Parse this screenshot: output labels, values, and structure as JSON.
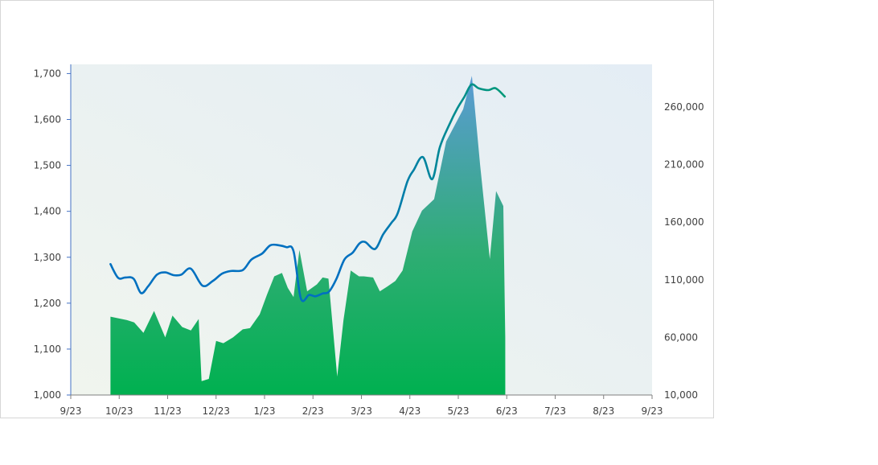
{
  "chart_data": {
    "type": "area",
    "title": "",
    "x_tick_labels": [
      "9/23",
      "10/23",
      "11/23",
      "12/23",
      "1/23",
      "2/23",
      "3/23",
      "4/23",
      "5/23",
      "6/23",
      "7/23",
      "8/23",
      "9/23"
    ],
    "left_axis": {
      "ticks": [
        "1,000",
        "1,100",
        "1,200",
        "1,300",
        "1,400",
        "1,500",
        "1,600",
        "1,700"
      ],
      "ylim": [
        1000,
        1720
      ]
    },
    "right_axis": {
      "ticks": [
        "10,000",
        "60,000",
        "110,000",
        "160,000",
        "210,000",
        "260,000"
      ],
      "ylim": [
        10000,
        297000
      ]
    },
    "grid": false,
    "series": [
      {
        "kind": "area",
        "axis": "right",
        "colors": {
          "bottom": "#00b050",
          "top": "#5b9bd5"
        },
        "x": [
          0.82,
          1.16,
          1.31,
          1.5,
          1.72,
          1.95,
          2.1,
          2.3,
          2.48,
          2.64,
          2.7,
          2.85,
          3.0,
          3.15,
          3.35,
          3.55,
          3.7,
          3.9,
          4.05,
          4.2,
          4.36,
          4.48,
          4.6,
          4.72,
          4.88,
          5.08,
          5.2,
          5.32,
          5.5,
          5.63,
          5.78,
          5.95,
          6.05,
          6.24,
          6.38,
          6.53,
          6.7,
          6.85,
          7.05,
          7.25,
          7.5,
          7.75,
          8.1,
          8.28,
          8.45,
          8.65,
          8.78,
          8.93,
          8.97
        ],
        "y": [
          78000,
          75000,
          73000,
          64000,
          83000,
          60000,
          79000,
          69000,
          66000,
          76000,
          22000,
          24000,
          57000,
          55000,
          60000,
          67000,
          68000,
          80000,
          97000,
          113000,
          116000,
          103000,
          95000,
          136000,
          100000,
          106000,
          112000,
          111000,
          26000,
          75000,
          118000,
          113000,
          113000,
          112000,
          100000,
          104000,
          109000,
          118000,
          152000,
          170000,
          180000,
          230000,
          258000,
          287000,
          210000,
          128000,
          187000,
          174000,
          60000
        ]
      },
      {
        "kind": "line",
        "axis": "left",
        "colors": {
          "start": "#0070c0",
          "end": "#00b050"
        },
        "x": [
          0.82,
          0.98,
          1.13,
          1.3,
          1.45,
          1.6,
          1.78,
          1.95,
          2.12,
          2.28,
          2.48,
          2.72,
          2.93,
          3.12,
          3.3,
          3.55,
          3.73,
          3.95,
          4.12,
          4.3,
          4.45,
          4.6,
          4.75,
          4.92,
          5.05,
          5.2,
          5.33,
          5.48,
          5.65,
          5.82,
          5.96,
          6.08,
          6.28,
          6.45,
          6.62,
          6.75,
          6.95,
          7.08,
          7.27,
          7.46,
          7.62,
          7.82,
          7.98,
          8.13,
          8.27,
          8.42,
          8.62,
          8.77,
          8.96
        ],
        "y": [
          1285,
          1255,
          1256,
          1253,
          1222,
          1237,
          1262,
          1267,
          1261,
          1262,
          1275,
          1238,
          1248,
          1264,
          1270,
          1272,
          1295,
          1308,
          1326,
          1326,
          1322,
          1313,
          1210,
          1218,
          1215,
          1221,
          1225,
          1252,
          1295,
          1310,
          1330,
          1333,
          1318,
          1350,
          1375,
          1396,
          1465,
          1490,
          1518,
          1470,
          1540,
          1590,
          1624,
          1650,
          1676,
          1668,
          1664,
          1668,
          1650
        ]
      }
    ]
  }
}
